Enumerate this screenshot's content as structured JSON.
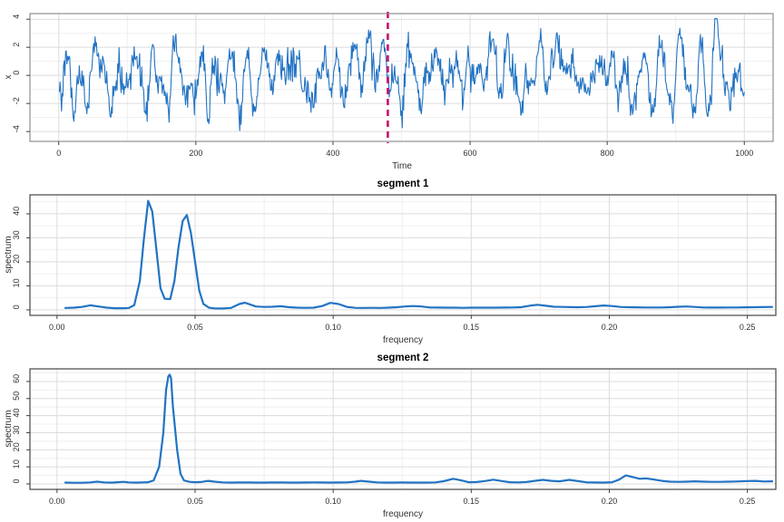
{
  "colors": {
    "line": "#2273c3",
    "vline": "#c5116e",
    "grid_major": "#dcdcdc",
    "grid_minor": "#efefef",
    "border_top_panel": "#8f8f8f",
    "border_spectrum_panel": "#454545",
    "tick": "#404040",
    "text": "#303030",
    "background": "#ffffff"
  },
  "chart_data": [
    {
      "id": "time-series",
      "type": "line",
      "title": "",
      "xlabel": "Time",
      "ylabel": "x",
      "x_ticks": {
        "values": [
          0,
          200,
          400,
          600,
          800,
          1000
        ],
        "labels": [
          "0",
          "200",
          "400",
          "600",
          "800",
          "1000"
        ]
      },
      "y_ticks": {
        "values": [
          -4,
          -2,
          0,
          2,
          4
        ],
        "labels": [
          "-4",
          "-2",
          "0",
          "2",
          "4"
        ]
      },
      "xlim": [
        -42,
        1042
      ],
      "ylim": [
        -4.7,
        4.4
      ],
      "grid": true,
      "line_width": 1.1,
      "series_spec": {
        "kind": "ar2-plus-noise",
        "n": 1000,
        "seed": 7,
        "phi": [
          1.8014,
          -0.8649
        ],
        "base_sd": 1.35,
        "noise_sd": 0.55,
        "clip": [
          -4.3,
          4.05
        ]
      },
      "vline": {
        "x": 480,
        "style": "dashed"
      }
    },
    {
      "id": "segment-1-spectrum",
      "type": "line",
      "title": "segment 1",
      "xlabel": "frequency",
      "ylabel": "spectrum",
      "x_ticks": {
        "values": [
          0.0,
          0.05,
          0.1,
          0.15,
          0.2,
          0.25
        ],
        "labels": [
          "0.00",
          "0.05",
          "0.10",
          "0.15",
          "0.20",
          "0.25"
        ]
      },
      "y_ticks": {
        "values": [
          0,
          10,
          20,
          30,
          40
        ],
        "labels": [
          "0",
          "10",
          "20",
          "30",
          "40"
        ]
      },
      "xlim": [
        -0.0098,
        0.2603
      ],
      "ylim": [
        -2.3,
        47.9
      ],
      "grid": true,
      "line_width": 2.2,
      "peaks_note": "twin peaks near f=0.033 (45) and f=0.047 (39.5)",
      "x": [
        0.003,
        0.006,
        0.009,
        0.012,
        0.015,
        0.018,
        0.021,
        0.024,
        0.026,
        0.028,
        0.03,
        0.0315,
        0.033,
        0.0345,
        0.036,
        0.0375,
        0.039,
        0.041,
        0.0425,
        0.044,
        0.0455,
        0.047,
        0.0485,
        0.05,
        0.0515,
        0.053,
        0.055,
        0.057,
        0.06,
        0.063,
        0.066,
        0.068,
        0.07,
        0.072,
        0.075,
        0.078,
        0.081,
        0.084,
        0.087,
        0.09,
        0.093,
        0.096,
        0.099,
        0.102,
        0.105,
        0.108,
        0.111,
        0.114,
        0.117,
        0.12,
        0.123,
        0.126,
        0.129,
        0.132,
        0.135,
        0.138,
        0.141,
        0.144,
        0.147,
        0.15,
        0.153,
        0.156,
        0.159,
        0.162,
        0.165,
        0.168,
        0.171,
        0.174,
        0.177,
        0.18,
        0.183,
        0.186,
        0.189,
        0.192,
        0.195,
        0.198,
        0.201,
        0.204,
        0.207,
        0.21,
        0.213,
        0.216,
        0.219,
        0.222,
        0.225,
        0.228,
        0.231,
        0.234,
        0.237,
        0.24,
        0.243,
        0.246,
        0.249,
        0.252,
        0.255,
        0.259
      ],
      "y": [
        0.8,
        0.9,
        1.2,
        1.9,
        1.4,
        0.9,
        0.7,
        0.7,
        0.8,
        2.0,
        12,
        30,
        45.4,
        41,
        25,
        9,
        4.6,
        4.5,
        12,
        26,
        37,
        39.5,
        32,
        20,
        8,
        2.5,
        0.9,
        0.6,
        0.55,
        0.8,
        2.4,
        3.0,
        2.2,
        1.4,
        1.2,
        1.3,
        1.5,
        1.1,
        0.9,
        0.85,
        0.9,
        1.6,
        2.9,
        2.4,
        1.2,
        0.85,
        0.8,
        0.85,
        0.8,
        0.9,
        1.1,
        1.4,
        1.6,
        1.4,
        1.0,
        0.95,
        0.9,
        0.9,
        0.85,
        0.9,
        0.9,
        0.9,
        0.9,
        0.95,
        1.0,
        1.1,
        1.7,
        2.1,
        1.7,
        1.3,
        1.2,
        1.15,
        1.1,
        1.2,
        1.5,
        1.8,
        1.6,
        1.2,
        1.1,
        1.05,
        1.0,
        1.0,
        1.0,
        1.1,
        1.3,
        1.4,
        1.2,
        1.0,
        0.95,
        0.95,
        1.0,
        1.0,
        1.05,
        1.1,
        1.15,
        1.2
      ]
    },
    {
      "id": "segment-2-spectrum",
      "type": "line",
      "title": "segment 2",
      "xlabel": "frequency",
      "ylabel": "spectrum",
      "x_ticks": {
        "values": [
          0.0,
          0.05,
          0.1,
          0.15,
          0.2,
          0.25
        ],
        "labels": [
          "0.00",
          "0.05",
          "0.10",
          "0.15",
          "0.20",
          "0.25"
        ]
      },
      "y_ticks": {
        "values": [
          0,
          10,
          20,
          30,
          40,
          50,
          60
        ],
        "labels": [
          "0",
          "10",
          "20",
          "30",
          "40",
          "50",
          "60"
        ]
      },
      "xlim": [
        -0.0098,
        0.2603
      ],
      "ylim": [
        -3.2,
        67.4
      ],
      "grid": true,
      "line_width": 2.2,
      "peaks_note": "single dominant peak near f=0.041 (64)",
      "x": [
        0.003,
        0.006,
        0.009,
        0.012,
        0.0145,
        0.017,
        0.02,
        0.022,
        0.024,
        0.026,
        0.029,
        0.031,
        0.033,
        0.035,
        0.037,
        0.0385,
        0.0395,
        0.0403,
        0.0408,
        0.0413,
        0.042,
        0.0435,
        0.0447,
        0.046,
        0.048,
        0.05,
        0.052,
        0.0548,
        0.057,
        0.06,
        0.063,
        0.066,
        0.069,
        0.072,
        0.075,
        0.078,
        0.081,
        0.084,
        0.087,
        0.09,
        0.093,
        0.096,
        0.099,
        0.102,
        0.105,
        0.108,
        0.11,
        0.113,
        0.116,
        0.119,
        0.122,
        0.125,
        0.128,
        0.131,
        0.134,
        0.137,
        0.14,
        0.1435,
        0.146,
        0.149,
        0.152,
        0.155,
        0.158,
        0.161,
        0.164,
        0.167,
        0.17,
        0.173,
        0.176,
        0.179,
        0.182,
        0.1855,
        0.189,
        0.192,
        0.195,
        0.198,
        0.201,
        0.2035,
        0.206,
        0.2085,
        0.211,
        0.2135,
        0.216,
        0.219,
        0.222,
        0.225,
        0.228,
        0.231,
        0.234,
        0.237,
        0.24,
        0.243,
        0.246,
        0.25,
        0.253,
        0.256,
        0.259
      ],
      "y": [
        0.8,
        0.7,
        0.7,
        0.9,
        1.3,
        0.9,
        0.8,
        1.0,
        1.2,
        0.9,
        0.8,
        0.9,
        1.0,
        2.0,
        10,
        30,
        55,
        63,
        64,
        62,
        45,
        20,
        6,
        2.0,
        1.2,
        1.0,
        1.1,
        1.8,
        1.3,
        0.9,
        0.8,
        0.85,
        0.9,
        0.8,
        0.8,
        0.85,
        0.9,
        0.8,
        0.8,
        0.85,
        0.9,
        0.85,
        0.8,
        0.85,
        0.9,
        1.3,
        1.8,
        1.3,
        0.9,
        0.8,
        0.8,
        0.85,
        0.8,
        0.8,
        0.8,
        0.9,
        1.6,
        3.0,
        2.2,
        1.0,
        1.1,
        1.7,
        2.5,
        1.7,
        1.0,
        0.9,
        1.1,
        1.8,
        2.4,
        1.8,
        1.5,
        2.4,
        1.6,
        0.9,
        0.85,
        0.8,
        1.0,
        2.5,
        5.0,
        4.0,
        3.0,
        3.2,
        2.6,
        1.8,
        1.3,
        1.2,
        1.3,
        1.5,
        1.3,
        1.2,
        1.2,
        1.3,
        1.4,
        1.7,
        1.8,
        1.4,
        1.5
      ]
    }
  ]
}
